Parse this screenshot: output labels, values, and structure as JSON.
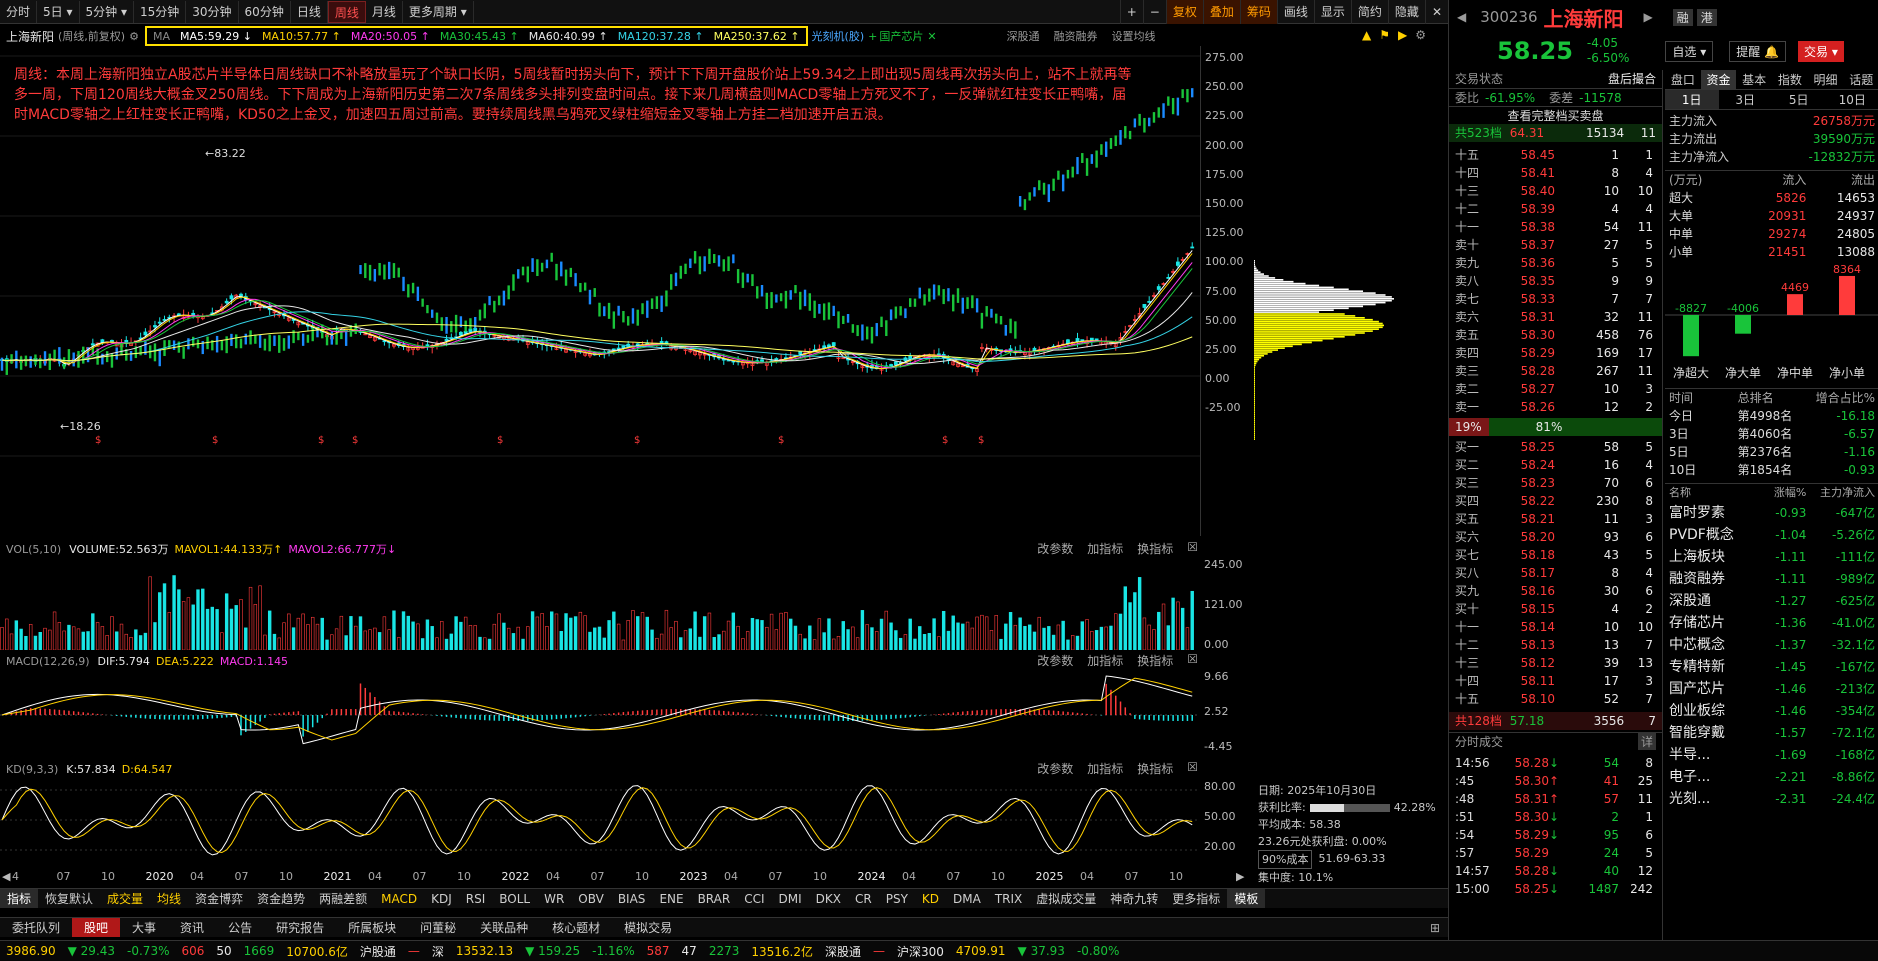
{
  "toolbar": {
    "periods": [
      "分时",
      "5日",
      "5分钟",
      "15分钟",
      "30分钟",
      "60分钟",
      "日线",
      "周线",
      "月线",
      "更多周期"
    ],
    "active_period": "周线",
    "right_buttons": [
      "复权",
      "叠加",
      "筹码",
      "画线",
      "显示",
      "简约",
      "隐藏"
    ],
    "stock_label": "上海新阳",
    "stock_period": "(周线,前复权)",
    "ma_items": [
      {
        "label": "MA5:59.29",
        "arrow": "↓",
        "color": "#ffffff"
      },
      {
        "label": "MA10:57.77",
        "arrow": "↑",
        "color": "#ffd000"
      },
      {
        "label": "MA20:50.05",
        "arrow": "↑",
        "color": "#ff3bf0"
      },
      {
        "label": "MA30:45.43",
        "arrow": "↑",
        "color": "#19c43a"
      },
      {
        "label": "MA60:40.99",
        "arrow": "↑",
        "color": "#e8e8e8"
      },
      {
        "label": "MA120:37.28",
        "arrow": "↑",
        "color": "#35d3e6"
      },
      {
        "label": "MA250:37.62",
        "arrow": "↑",
        "color": "#ffff60"
      }
    ],
    "concept_tags": [
      "光刻机(胶)",
      "国产芯片"
    ],
    "links": [
      "深股通",
      "融资融券",
      "设置均线"
    ]
  },
  "annotation": "周线：本周上海新阳独立A股芯片半导体日周线缺口不补略放量玩了个缺口长阴，5周线暂时拐头向下，预计下下周开盘股价站上59.34之上即出现5周线再次拐头向上，站不上就再等多一周，下周120周线大概金叉250周线。下下周成为上海新阳历史第二次7条周线多头排列变盘时间点。接下来几周横盘则MACD零轴上方死叉不了，一反弹就红柱变长正鸭嘴，届时MACD零轴之上红柱变长正鸭嘴，KD50之上金叉，加速四五周过前高。要持续周线黑乌鸦死叉绿柱缩短金叉零轴上方挂二档加速开启五浪。",
  "price_axis": [
    "275.00",
    "250.00",
    "225.00",
    "200.00",
    "175.00",
    "150.00",
    "125.00",
    "100.00",
    "75.00",
    "50.00",
    "25.00",
    "0.00",
    "-25.00"
  ],
  "marks": {
    "high": "83.22",
    "low": "18.26"
  },
  "vol": {
    "title": "VOL(5,10)",
    "volume": "VOLUME:52.563万",
    "mavol1": "MAVOL1:44.133万",
    "mavol2": "MAVOL2:66.777万",
    "axis": [
      "245.00",
      "121.00",
      "0.00"
    ]
  },
  "macd": {
    "title": "MACD(12,26,9)",
    "dif": "DIF:5.794",
    "dea": "DEA:5.222",
    "macd": "MACD:1.145",
    "axis": [
      "9.66",
      "2.52",
      "-4.45"
    ]
  },
  "kd": {
    "title": "KD(9,3,3)",
    "k": "K:57.834",
    "d": "D:64.547",
    "axis": [
      "80.00",
      "50.00",
      "20.00"
    ]
  },
  "panel_links": [
    "改参数",
    "加指标",
    "换指标"
  ],
  "timeline": [
    "4",
    "07",
    "10",
    "2020",
    "04",
    "07",
    "10",
    "2021",
    "04",
    "07",
    "10",
    "2022",
    "04",
    "07",
    "10",
    "2023",
    "04",
    "07",
    "10",
    "2024",
    "04",
    "07",
    "10",
    "2025",
    "04",
    "07",
    "10"
  ],
  "chip": {
    "date": "日期: 2025年10月30日",
    "profit_ratio": "获利比率:",
    "profit_val": "42.28%",
    "avg_cost": "平均成本: 58.38",
    "cost_label": "23.26元处获利盘: 0.00%",
    "range_sel": "90%成本",
    "range": "51.69-63.33",
    "concentration": "集中度: 10.1%"
  },
  "indicator_tabs": [
    "指标",
    "恢复默认",
    "成交量",
    "均线",
    "资金博弈",
    "资金趋势",
    "两融差额",
    "MACD",
    "KDJ",
    "RSI",
    "BOLL",
    "WR",
    "OBV",
    "BIAS",
    "ENE",
    "BRAR",
    "CCI",
    "DMI",
    "DKX",
    "CR",
    "PSY",
    "KD",
    "DMA",
    "TRIX",
    "虚拟成交量",
    "神奇九转",
    "更多指标",
    "模板"
  ],
  "bottom_tabs": [
    "委托队列",
    "股吧",
    "大事",
    "资讯",
    "公告",
    "研究报告",
    "所属板块",
    "问董秘",
    "关联品种",
    "核心题材",
    "模拟交易"
  ],
  "quote": {
    "code": "300236",
    "name": "上海新阳",
    "price": "58.25",
    "change": "-4.05",
    "pct": "-6.50%",
    "rong": "融",
    "gang": "港",
    "zixuan": "自选",
    "tixing": "提醒",
    "jiaoyi": "交易"
  },
  "trade_status": {
    "label": "交易状态",
    "value": "盘后撮合",
    "weibi_label": "委比",
    "weibi": "-61.95%",
    "weicha_label": "委差",
    "weicha": "-11578",
    "view_full": "查看完整档买卖盘",
    "total_sell": "共523档",
    "total_sell_px": "64.31",
    "total_sell_vol": "15134",
    "total_sell_n": "11",
    "total_buy": "共128档",
    "total_buy_px": "57.18",
    "total_buy_vol": "3556",
    "total_buy_n": "7",
    "pct_left": "19%",
    "pct_right": "81%"
  },
  "sells": [
    {
      "l": "十五",
      "p": "58.45",
      "v": "1",
      "n": "1"
    },
    {
      "l": "十四",
      "p": "58.41",
      "v": "8",
      "n": "4"
    },
    {
      "l": "十三",
      "p": "58.40",
      "v": "10",
      "n": "10"
    },
    {
      "l": "十二",
      "p": "58.39",
      "v": "4",
      "n": "4"
    },
    {
      "l": "十一",
      "p": "58.38",
      "v": "54",
      "n": "11"
    },
    {
      "l": "卖十",
      "p": "58.37",
      "v": "27",
      "n": "5"
    },
    {
      "l": "卖九",
      "p": "58.36",
      "v": "5",
      "n": "5"
    },
    {
      "l": "卖八",
      "p": "58.35",
      "v": "9",
      "n": "9"
    },
    {
      "l": "卖七",
      "p": "58.33",
      "v": "7",
      "n": "7"
    },
    {
      "l": "卖六",
      "p": "58.31",
      "v": "32",
      "n": "11"
    },
    {
      "l": "卖五",
      "p": "58.30",
      "v": "458",
      "n": "76"
    },
    {
      "l": "卖四",
      "p": "58.29",
      "v": "169",
      "n": "17"
    },
    {
      "l": "卖三",
      "p": "58.28",
      "v": "267",
      "n": "11"
    },
    {
      "l": "卖二",
      "p": "58.27",
      "v": "10",
      "n": "3"
    },
    {
      "l": "卖一",
      "p": "58.26",
      "v": "12",
      "n": "2"
    }
  ],
  "buys": [
    {
      "l": "买一",
      "p": "58.25",
      "v": "58",
      "n": "5"
    },
    {
      "l": "买二",
      "p": "58.24",
      "v": "16",
      "n": "4"
    },
    {
      "l": "买三",
      "p": "58.23",
      "v": "70",
      "n": "6"
    },
    {
      "l": "买四",
      "p": "58.22",
      "v": "230",
      "n": "8"
    },
    {
      "l": "买五",
      "p": "58.21",
      "v": "11",
      "n": "3"
    },
    {
      "l": "买六",
      "p": "58.20",
      "v": "93",
      "n": "6"
    },
    {
      "l": "买七",
      "p": "58.18",
      "v": "43",
      "n": "5"
    },
    {
      "l": "买八",
      "p": "58.17",
      "v": "8",
      "n": "4"
    },
    {
      "l": "买九",
      "p": "58.16",
      "v": "30",
      "n": "6"
    },
    {
      "l": "买十",
      "p": "58.15",
      "v": "4",
      "n": "2"
    },
    {
      "l": "十一",
      "p": "58.14",
      "v": "10",
      "n": "10"
    },
    {
      "l": "十二",
      "p": "58.13",
      "v": "13",
      "n": "7"
    },
    {
      "l": "十三",
      "p": "58.12",
      "v": "39",
      "n": "13"
    },
    {
      "l": "十四",
      "p": "58.11",
      "v": "17",
      "n": "3"
    },
    {
      "l": "十五",
      "p": "58.10",
      "v": "52",
      "n": "7"
    }
  ],
  "ticks_title": "分时成交",
  "ticks_detail": "详",
  "ticks": [
    {
      "t": "14:56",
      "p": "58.28",
      "a": "↓",
      "v": "54",
      "n": "8"
    },
    {
      "t": ":45",
      "p": "58.30",
      "a": "↑",
      "v": "41",
      "n": "25"
    },
    {
      "t": ":48",
      "p": "58.31",
      "a": "↑",
      "v": "57",
      "n": "11"
    },
    {
      "t": ":51",
      "p": "58.30",
      "a": "↓",
      "v": "2",
      "n": "1"
    },
    {
      "t": ":54",
      "p": "58.29",
      "a": "↓",
      "v": "95",
      "n": "6"
    },
    {
      "t": ":57",
      "p": "58.29",
      "a": "",
      "v": "24",
      "n": "5"
    },
    {
      "t": "14:57",
      "p": "58.28",
      "a": "↓",
      "v": "40",
      "n": "12"
    },
    {
      "t": "15:00",
      "p": "58.25",
      "a": "↓",
      "v": "1487",
      "n": "242"
    }
  ],
  "fund_tabs": [
    "盘口",
    "资金",
    "基本",
    "指数",
    "明细",
    "话题"
  ],
  "fund_days": [
    "1日",
    "3日",
    "5日",
    "10日"
  ],
  "fund_summary": [
    {
      "l": "主力流入",
      "v": "26758万元"
    },
    {
      "l": "主力流出",
      "v": "39590万元"
    },
    {
      "l": "主力净流入",
      "v": "-12832万元"
    }
  ],
  "fund_table_head": [
    "(万元)",
    "流入",
    "流出"
  ],
  "fund_table": [
    {
      "l": "超大",
      "in": "5826",
      "out": "14653"
    },
    {
      "l": "大单",
      "in": "20931",
      "out": "24937"
    },
    {
      "l": "中单",
      "in": "29274",
      "out": "24805"
    },
    {
      "l": "小单",
      "in": "21451",
      "out": "13088"
    }
  ],
  "net_bars": [
    {
      "l": "净超大",
      "v": "-8827",
      "n": -8827
    },
    {
      "l": "净大单",
      "v": "-4006",
      "n": -4006
    },
    {
      "l": "净中单",
      "v": "4469",
      "n": 4469
    },
    {
      "l": "净小单",
      "v": "8364",
      "n": 8364
    }
  ],
  "rank_head": [
    "时间",
    "总排名",
    "增合占比%"
  ],
  "rank": [
    {
      "t": "今日",
      "r": "第4998名",
      "p": "-16.18"
    },
    {
      "t": "3日",
      "r": "第4060名",
      "p": "-6.57"
    },
    {
      "t": "5日",
      "r": "第2376名",
      "p": "-1.16"
    },
    {
      "t": "10日",
      "r": "第1854名",
      "p": "-0.93"
    }
  ],
  "sector_head": [
    "名称",
    "涨幅%",
    "主力净流入"
  ],
  "sectors": [
    {
      "n": "富时罗素",
      "c": "-0.93",
      "f": "-647亿"
    },
    {
      "n": "PVDF概念",
      "c": "-1.04",
      "f": "-5.26亿"
    },
    {
      "n": "上海板块",
      "c": "-1.11",
      "f": "-111亿"
    },
    {
      "n": "融资融券",
      "c": "-1.11",
      "f": "-989亿"
    },
    {
      "n": "深股通",
      "c": "-1.27",
      "f": "-625亿"
    },
    {
      "n": "存储芯片",
      "c": "-1.36",
      "f": "-41.0亿"
    },
    {
      "n": "中芯概念",
      "c": "-1.37",
      "f": "-32.1亿"
    },
    {
      "n": "专精特新",
      "c": "-1.45",
      "f": "-167亿"
    },
    {
      "n": "国产芯片",
      "c": "-1.46",
      "f": "-213亿"
    },
    {
      "n": "创业板综",
      "c": "-1.46",
      "f": "-354亿"
    },
    {
      "n": "智能穿戴",
      "c": "-1.57",
      "f": "-72.1亿"
    },
    {
      "n": "半导...",
      "c": "-1.69",
      "f": "-168亿"
    },
    {
      "n": "电子...",
      "c": "-2.21",
      "f": "-8.86亿"
    },
    {
      "n": "光刻...",
      "c": "-2.31",
      "f": "-24.4亿"
    }
  ],
  "status_bar": [
    {
      "t": "3986.90",
      "c": "#ffd000"
    },
    {
      "t": "▼ 29.43",
      "c": "#19c43a"
    },
    {
      "t": "-0.73%",
      "c": "#19c43a"
    },
    {
      "t": "606",
      "c": "#ff3b3b"
    },
    {
      "t": "50",
      "c": "#e8e8e8"
    },
    {
      "t": "1669",
      "c": "#19c43a"
    },
    {
      "t": "10700.6亿",
      "c": "#ffd000"
    },
    {
      "t": "沪股通",
      "c": "#e8e8e8"
    },
    {
      "t": "—",
      "c": "#ff3b3b"
    },
    {
      "t": "深",
      "c": "#e8e8e8"
    },
    {
      "t": "13532.13",
      "c": "#ffd000"
    },
    {
      "t": "▼ 159.25",
      "c": "#19c43a"
    },
    {
      "t": "-1.16%",
      "c": "#19c43a"
    },
    {
      "t": "587",
      "c": "#ff3b3b"
    },
    {
      "t": "47",
      "c": "#e8e8e8"
    },
    {
      "t": "2273",
      "c": "#19c43a"
    },
    {
      "t": "13516.2亿",
      "c": "#ffd000"
    },
    {
      "t": "深股通",
      "c": "#e8e8e8"
    },
    {
      "t": "—",
      "c": "#ff3b3b"
    },
    {
      "t": "沪深300",
      "c": "#e8e8e8"
    },
    {
      "t": "4709.91",
      "c": "#ffd000"
    },
    {
      "t": "▼ 37.93",
      "c": "#19c43a"
    },
    {
      "t": "-0.80%",
      "c": "#19c43a"
    }
  ]
}
